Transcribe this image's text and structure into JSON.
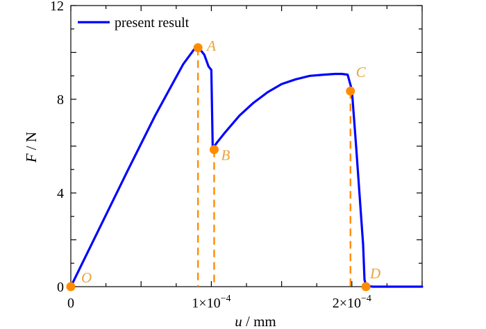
{
  "chart_data": {
    "type": "line",
    "x_unit": 0.0001,
    "xlim": [
      0,
      2.5
    ],
    "ylim": [
      0,
      12
    ],
    "xticks": [
      {
        "value": 0,
        "label": "0"
      },
      {
        "value": 1,
        "label": "1×10",
        "exp": "−4"
      },
      {
        "value": 2,
        "label": "2×10",
        "exp": "−4"
      }
    ],
    "yticks": [
      {
        "value": 0,
        "label": "0"
      },
      {
        "value": 4,
        "label": "4"
      },
      {
        "value": 8,
        "label": "8"
      },
      {
        "value": 12,
        "label": "12"
      }
    ],
    "xlabel": {
      "var": "u",
      "unit": " / mm"
    },
    "ylabel": {
      "var": "F",
      "unit": " / N"
    },
    "legend": {
      "placement": "top-left",
      "entries": [
        "present result"
      ]
    },
    "series": [
      {
        "name": "present result",
        "color": "#0000ff",
        "x": [
          0,
          0.2,
          0.4,
          0.6,
          0.8,
          0.88,
          0.91,
          0.95,
          0.98,
          1.0,
          1.01,
          1.04,
          1.1,
          1.2,
          1.3,
          1.4,
          1.5,
          1.6,
          1.7,
          1.8,
          1.88,
          1.93,
          1.97,
          2.0,
          2.03,
          2.06,
          2.08,
          2.09,
          2.1,
          2.12,
          2.15,
          2.2,
          2.3,
          2.5
        ],
        "y": [
          0,
          2.45,
          4.9,
          7.3,
          9.5,
          10.15,
          10.2,
          9.9,
          9.4,
          9.25,
          5.9,
          6.15,
          6.6,
          7.3,
          7.85,
          8.3,
          8.65,
          8.85,
          9.0,
          9.05,
          9.08,
          9.08,
          9.05,
          8.4,
          6.0,
          3.5,
          1.8,
          0.3,
          0.05,
          0.02,
          0,
          0,
          0,
          0
        ]
      }
    ],
    "points": [
      {
        "label": "O",
        "x": 0,
        "y": 0
      },
      {
        "label": "A",
        "x": 0.905,
        "y": 10.2
      },
      {
        "label": "B",
        "x": 1.02,
        "y": 5.85
      },
      {
        "label": "C",
        "x": 1.99,
        "y": 8.35
      },
      {
        "label": "D",
        "x": 2.1,
        "y": 0
      }
    ],
    "point_color": "#ff8c00",
    "label_color": "#e8a43a",
    "dashed_drops": [
      "A",
      "B",
      "C"
    ],
    "grid": false
  }
}
